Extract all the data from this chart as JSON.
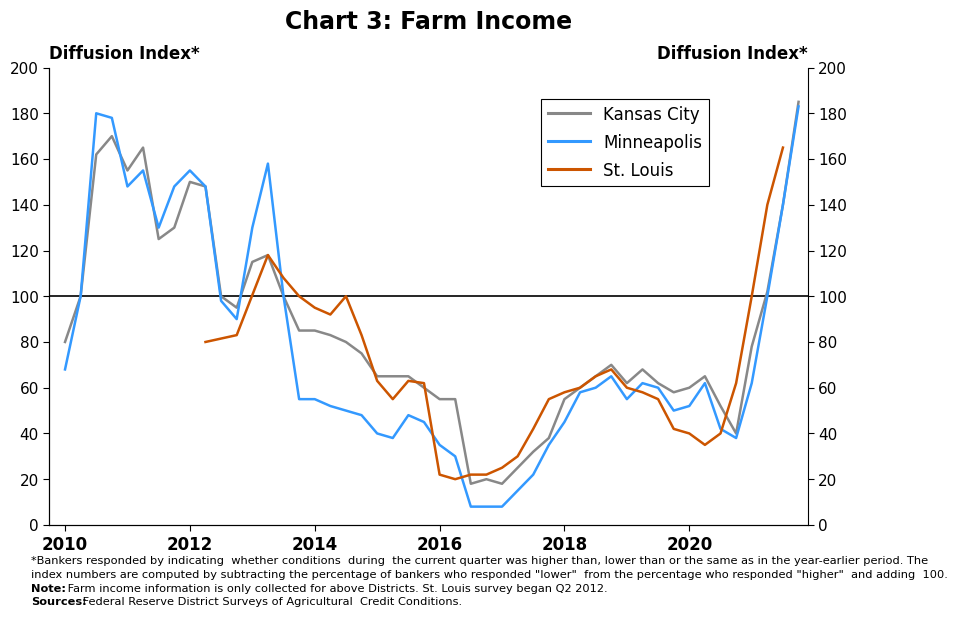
{
  "title": "Chart 3: Farm Income",
  "ylabel_left": "Diffusion Index*",
  "ylabel_right": "Diffusion Index*",
  "ylim": [
    0,
    200
  ],
  "yticks": [
    0,
    20,
    40,
    60,
    80,
    100,
    120,
    140,
    160,
    180,
    200
  ],
  "hline": 100,
  "xlim_left": 2009.75,
  "xlim_right": 2021.9,
  "xticks": [
    2010,
    2012,
    2014,
    2016,
    2018,
    2020
  ],
  "background_color": "#ffffff",
  "kc_color": "#888888",
  "mn_color": "#3399FF",
  "stl_color": "#CC5500",
  "linewidth": 1.8,
  "kansas_city": [
    80,
    100,
    162,
    170,
    155,
    165,
    125,
    130,
    150,
    148,
    100,
    95,
    115,
    118,
    100,
    85,
    85,
    83,
    80,
    75,
    65,
    65,
    65,
    60,
    55,
    55,
    18,
    20,
    18,
    25,
    32,
    38,
    55,
    60,
    65,
    70,
    62,
    68,
    62,
    58,
    60,
    65,
    52,
    40,
    78,
    102,
    140,
    185
  ],
  "minneapolis": [
    68,
    100,
    180,
    178,
    148,
    155,
    130,
    148,
    155,
    148,
    98,
    90,
    130,
    158,
    100,
    55,
    55,
    52,
    50,
    48,
    40,
    38,
    48,
    45,
    35,
    30,
    8,
    8,
    8,
    15,
    22,
    35,
    45,
    58,
    60,
    65,
    55,
    62,
    60,
    50,
    52,
    62,
    42,
    38,
    62,
    100,
    140,
    183
  ],
  "st_louis": {
    "quarters": [
      [
        2012,
        2
      ],
      [
        2012,
        4
      ],
      [
        2013,
        2
      ],
      [
        2013,
        3
      ],
      [
        2013,
        4
      ],
      [
        2014,
        1
      ],
      [
        2014,
        2
      ],
      [
        2014,
        3
      ],
      [
        2014,
        4
      ],
      [
        2015,
        1
      ],
      [
        2015,
        2
      ],
      [
        2015,
        3
      ],
      [
        2015,
        4
      ],
      [
        2016,
        1
      ],
      [
        2016,
        2
      ],
      [
        2016,
        3
      ],
      [
        2016,
        4
      ],
      [
        2017,
        1
      ],
      [
        2017,
        2
      ],
      [
        2017,
        3
      ],
      [
        2017,
        4
      ],
      [
        2018,
        1
      ],
      [
        2018,
        2
      ],
      [
        2018,
        3
      ],
      [
        2018,
        4
      ],
      [
        2019,
        1
      ],
      [
        2019,
        2
      ],
      [
        2019,
        3
      ],
      [
        2019,
        4
      ],
      [
        2020,
        1
      ],
      [
        2020,
        2
      ],
      [
        2020,
        3
      ],
      [
        2020,
        4
      ],
      [
        2021,
        1
      ],
      [
        2021,
        2
      ],
      [
        2021,
        3
      ]
    ],
    "values": [
      80,
      83,
      118,
      108,
      100,
      95,
      92,
      100,
      83,
      63,
      55,
      63,
      62,
      22,
      20,
      22,
      22,
      25,
      30,
      42,
      55,
      58,
      60,
      65,
      68,
      60,
      58,
      55,
      42,
      40,
      35,
      40,
      62,
      100,
      140,
      165
    ]
  },
  "footnote1": "*Bankers responded by indicating  whether conditions  during  the current quarter was higher than, lower than or the same as in the year-earlier period. The",
  "footnote2": "index numbers are computed by subtracting the percentage of bankers who responded \"lower\"  from the percentage who responded \"higher\"  and adding  100.",
  "footnote3_bold": "Note:",
  "footnote3_normal": " Farm income information is only collected for above Districts. St. Louis survey began Q2 2012.",
  "footnote4_bold": "Sources:",
  "footnote4_normal": " Federal Reserve District Surveys of Agricultural  Credit Conditions."
}
